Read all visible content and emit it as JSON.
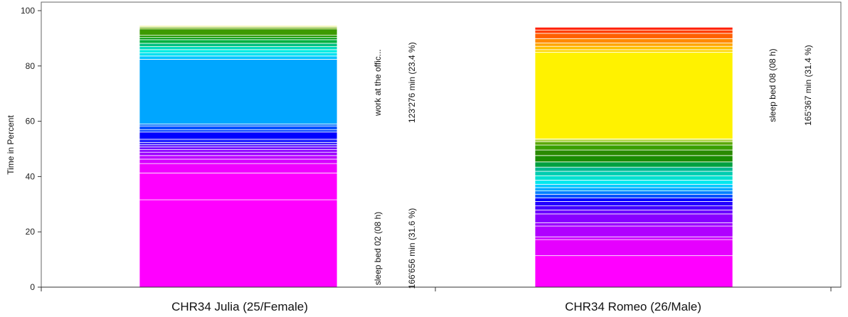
{
  "chart_data": {
    "type": "bar",
    "stacked": true,
    "ylabel": "Time in Percent",
    "ylim": [
      0,
      100
    ],
    "yticks": [
      0,
      20,
      40,
      60,
      80,
      100
    ],
    "ytick_labels": [
      "0",
      "20",
      "40",
      "60",
      "80",
      "100"
    ],
    "categories": [
      "CHR34 Julia (25/Female)",
      "CHR34 Romeo (26/Male)"
    ],
    "series": [
      {
        "category": "CHR34 Julia (25/Female)",
        "segments": [
          {
            "value": 31.6,
            "color": "#ff00ff"
          },
          {
            "value": 9.7,
            "color": "#ff00ff"
          },
          {
            "value": 3.4,
            "color": "#f000ff"
          },
          {
            "value": 1.6,
            "color": "#d600ff"
          },
          {
            "value": 1.3,
            "color": "#bd00ff"
          },
          {
            "value": 1.2,
            "color": "#9d00ff"
          },
          {
            "value": 1.0,
            "color": "#8a00ff"
          },
          {
            "value": 0.9,
            "color": "#6c00ff"
          },
          {
            "value": 0.8,
            "color": "#5a10ff"
          },
          {
            "value": 0.8,
            "color": "#3a20ff"
          },
          {
            "value": 1.2,
            "color": "#2222ff"
          },
          {
            "value": 2.6,
            "color": "#0000ff"
          },
          {
            "value": 0.8,
            "color": "#0040ff"
          },
          {
            "value": 1.4,
            "color": "#0050ff"
          },
          {
            "value": 0.7,
            "color": "#0070ff"
          },
          {
            "value": 23.4,
            "color": "#00a6ff"
          },
          {
            "value": 1.2,
            "color": "#00c4ff"
          },
          {
            "value": 1.2,
            "color": "#00e0f0"
          },
          {
            "value": 1.1,
            "color": "#00ece0"
          },
          {
            "value": 1.1,
            "color": "#00dcc0"
          },
          {
            "value": 1.2,
            "color": "#00c080"
          },
          {
            "value": 1.3,
            "color": "#00b040"
          },
          {
            "value": 0.8,
            "color": "#009a10"
          },
          {
            "value": 0.8,
            "color": "#1e9a00"
          },
          {
            "value": 2.3,
            "color": "#3d9a00"
          },
          {
            "value": 0.6,
            "color": "#66a800"
          },
          {
            "value": 0.3,
            "color": "#a8d200"
          },
          {
            "value": 0.3,
            "color": "#e6e600"
          },
          {
            "value": 0.1,
            "color": "#ffe600"
          }
        ],
        "annotations": [
          {
            "label": "work at the offic...",
            "value_text": "123'276 min (23.4 %)"
          },
          {
            "label": "sleep bed 02 (08 h)",
            "value_text": "166'656 min (31.6 %)"
          }
        ]
      },
      {
        "category": "CHR34 Romeo (26/Male)",
        "segments": [
          {
            "value": 11.4,
            "color": "#ff00ff"
          },
          {
            "value": 5.8,
            "color": "#e600ff"
          },
          {
            "value": 1.0,
            "color": "#cc00ff"
          },
          {
            "value": 3.9,
            "color": "#b000ff"
          },
          {
            "value": 1.2,
            "color": "#9a00ff"
          },
          {
            "value": 3.2,
            "color": "#8800ff"
          },
          {
            "value": 1.4,
            "color": "#6a00ff"
          },
          {
            "value": 1.5,
            "color": "#4400ff"
          },
          {
            "value": 1.6,
            "color": "#2200ff"
          },
          {
            "value": 1.3,
            "color": "#0000ff"
          },
          {
            "value": 1.3,
            "color": "#0050ff"
          },
          {
            "value": 1.2,
            "color": "#0080ff"
          },
          {
            "value": 1.2,
            "color": "#00a8ff"
          },
          {
            "value": 1.2,
            "color": "#00c8ff"
          },
          {
            "value": 1.5,
            "color": "#00e8ee"
          },
          {
            "value": 1.6,
            "color": "#00e0d0"
          },
          {
            "value": 1.6,
            "color": "#00ccb0"
          },
          {
            "value": 1.5,
            "color": "#00b890"
          },
          {
            "value": 1.9,
            "color": "#00a040"
          },
          {
            "value": 2.3,
            "color": "#1a8c00"
          },
          {
            "value": 2.0,
            "color": "#2a8a00"
          },
          {
            "value": 1.8,
            "color": "#3aa000"
          },
          {
            "value": 1.2,
            "color": "#5aa800"
          },
          {
            "value": 0.6,
            "color": "#8ac200"
          },
          {
            "value": 0.4,
            "color": "#c0d800"
          },
          {
            "value": 31.4,
            "color": "#fff200"
          },
          {
            "value": 0.9,
            "color": "#ffd600"
          },
          {
            "value": 1.2,
            "color": "#ffc000"
          },
          {
            "value": 1.2,
            "color": "#ffa600"
          },
          {
            "value": 1.6,
            "color": "#ff8a00"
          },
          {
            "value": 1.9,
            "color": "#ff6000"
          },
          {
            "value": 1.2,
            "color": "#ff4000"
          },
          {
            "value": 1.0,
            "color": "#ff2000"
          }
        ],
        "annotations": [
          {
            "label": "sleep bed 08 (08 h)",
            "value_text": "165'367 min (31.4 %)"
          }
        ]
      }
    ]
  }
}
